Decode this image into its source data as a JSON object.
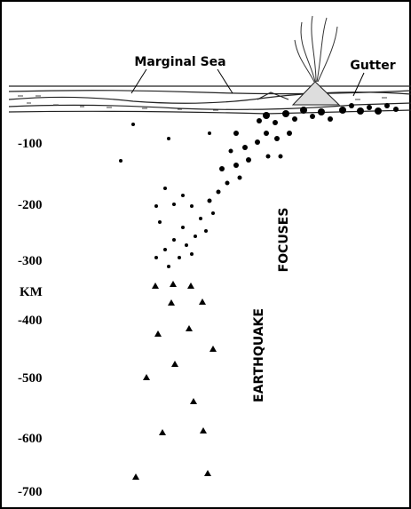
{
  "labels": {
    "marginal_sea": "Marginal Sea",
    "gutter": "Gutter",
    "unit": "KM",
    "focuses": "FOCUSES",
    "earthquake": "EARTHQUAKE"
  },
  "depth_labels": [
    "-100",
    "-200",
    "-300",
    "-400",
    "-500",
    "-600",
    "-700"
  ]
}
